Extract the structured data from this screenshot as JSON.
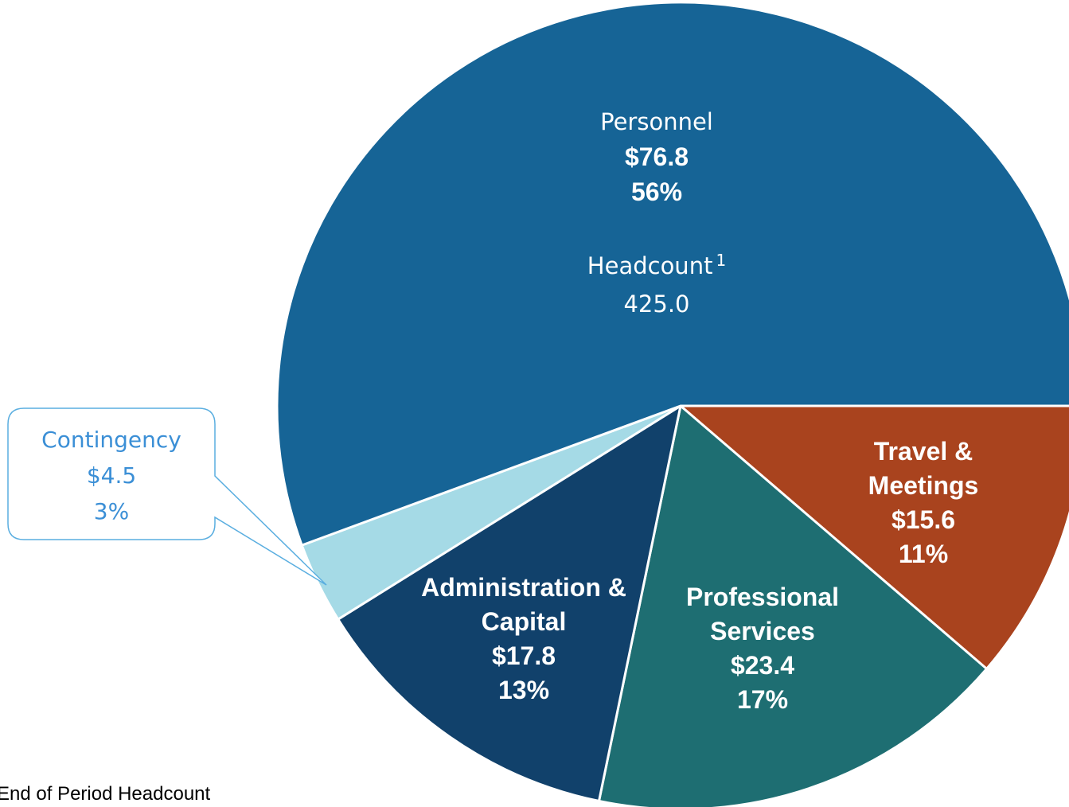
{
  "chart_data": {
    "type": "pie",
    "categories": [
      "Travel & Meetings",
      "Professional Services",
      "Administration & Capital",
      "Contingency",
      "Personnel"
    ],
    "values": [
      15.6,
      23.4,
      17.8,
      4.5,
      76.8
    ],
    "value_labels": [
      "$15.6",
      "$23.4",
      "$17.8",
      "$4.5",
      "$76.8"
    ],
    "percentages": [
      11,
      17,
      13,
      3,
      56
    ],
    "percentage_labels": [
      "11%",
      "17%",
      "13%",
      "3%",
      "56%"
    ],
    "colors": [
      "#a9431e",
      "#1e6e72",
      "#11416b",
      "#a5dae6",
      "#166496"
    ]
  },
  "annotation": {
    "label": "Headcount",
    "note": "1",
    "value": "425.0"
  },
  "footnote": "End of Period Headcount"
}
